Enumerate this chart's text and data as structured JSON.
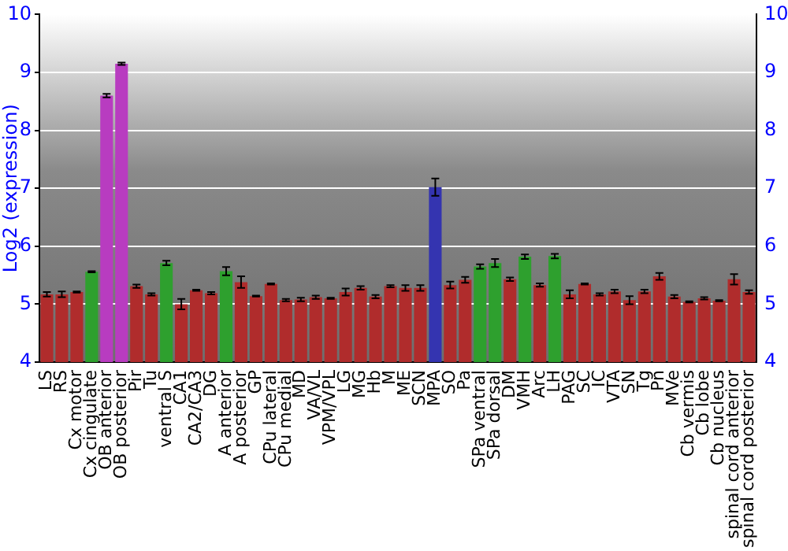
{
  "chart_data": {
    "type": "bar",
    "ylabel": "Log2 (expression)",
    "categories": [
      "LS",
      "RS",
      "Cx motor",
      "Cx cingulate",
      "OB anterior",
      "OB posterior",
      "Pir",
      "Tu",
      "ventral S",
      "CA1",
      "CA2/CA3",
      "DG",
      "A anterior",
      "A posterior",
      "GP",
      "CPu lateral",
      "CPu medial",
      "MD",
      "VA/VL",
      "VPM/VPL",
      "LG",
      "MG",
      "Hb",
      "M",
      "ME",
      "SCN",
      "MPA",
      "SO",
      "Pa",
      "SPa ventral",
      "SPa dorsal",
      "DM",
      "VMH",
      "Arc",
      "LH",
      "PAG",
      "SC",
      "IC",
      "VTA",
      "SN",
      "Tg",
      "Pn",
      "MVe",
      "Cb vermis",
      "Cb lobe",
      "Cb nucleus",
      "spinal cord anterior",
      "spinal cord posterior"
    ],
    "values": [
      5.17,
      5.17,
      5.21,
      5.56,
      8.6,
      9.15,
      5.31,
      5.17,
      5.71,
      5.0,
      5.24,
      5.19,
      5.57,
      5.38,
      5.14,
      5.35,
      5.07,
      5.08,
      5.12,
      5.1,
      5.21,
      5.28,
      5.13,
      5.31,
      5.28,
      5.28,
      7.02,
      5.33,
      5.42,
      5.65,
      5.71,
      5.43,
      5.82,
      5.33,
      5.83,
      5.17,
      5.35,
      5.17,
      5.22,
      5.07,
      5.22,
      5.48,
      5.13,
      5.04,
      5.1,
      5.06,
      5.43,
      5.21
    ],
    "errors": [
      0.04,
      0.05,
      0.01,
      0.01,
      0.03,
      0.02,
      0.03,
      0.02,
      0.04,
      0.09,
      0.01,
      0.02,
      0.07,
      0.1,
      0.01,
      0.01,
      0.02,
      0.03,
      0.03,
      0.01,
      0.06,
      0.03,
      0.03,
      0.02,
      0.05,
      0.05,
      0.15,
      0.06,
      0.05,
      0.04,
      0.07,
      0.03,
      0.04,
      0.03,
      0.04,
      0.07,
      0.01,
      0.02,
      0.03,
      0.07,
      0.03,
      0.06,
      0.03,
      0.01,
      0.02,
      0.01,
      0.09,
      0.03
    ],
    "colors": [
      "#b02c2c",
      "#b02c2c",
      "#b02c2c",
      "#2ea02e",
      "#b83cc0",
      "#b83cc0",
      "#b02c2c",
      "#b02c2c",
      "#2ea02e",
      "#b02c2c",
      "#b02c2c",
      "#b02c2c",
      "#2ea02e",
      "#b02c2c",
      "#b02c2c",
      "#b02c2c",
      "#b02c2c",
      "#b02c2c",
      "#b02c2c",
      "#b02c2c",
      "#b02c2c",
      "#b02c2c",
      "#b02c2c",
      "#b02c2c",
      "#b02c2c",
      "#b02c2c",
      "#3434b0",
      "#b02c2c",
      "#b02c2c",
      "#2ea02e",
      "#2ea02e",
      "#b02c2c",
      "#2ea02e",
      "#b02c2c",
      "#2ea02e",
      "#b02c2c",
      "#b02c2c",
      "#b02c2c",
      "#b02c2c",
      "#b02c2c",
      "#b02c2c",
      "#b02c2c",
      "#b02c2c",
      "#b02c2c",
      "#b02c2c",
      "#b02c2c",
      "#b02c2c",
      "#b02c2c"
    ],
    "ylim": [
      4,
      10
    ],
    "yticks": [
      4,
      5,
      6,
      7,
      8,
      9,
      10
    ],
    "y2lim": [
      4,
      10
    ],
    "y2ticks": [
      4,
      5,
      6,
      7,
      8,
      9,
      10
    ],
    "grid": "y",
    "legend": false
  }
}
